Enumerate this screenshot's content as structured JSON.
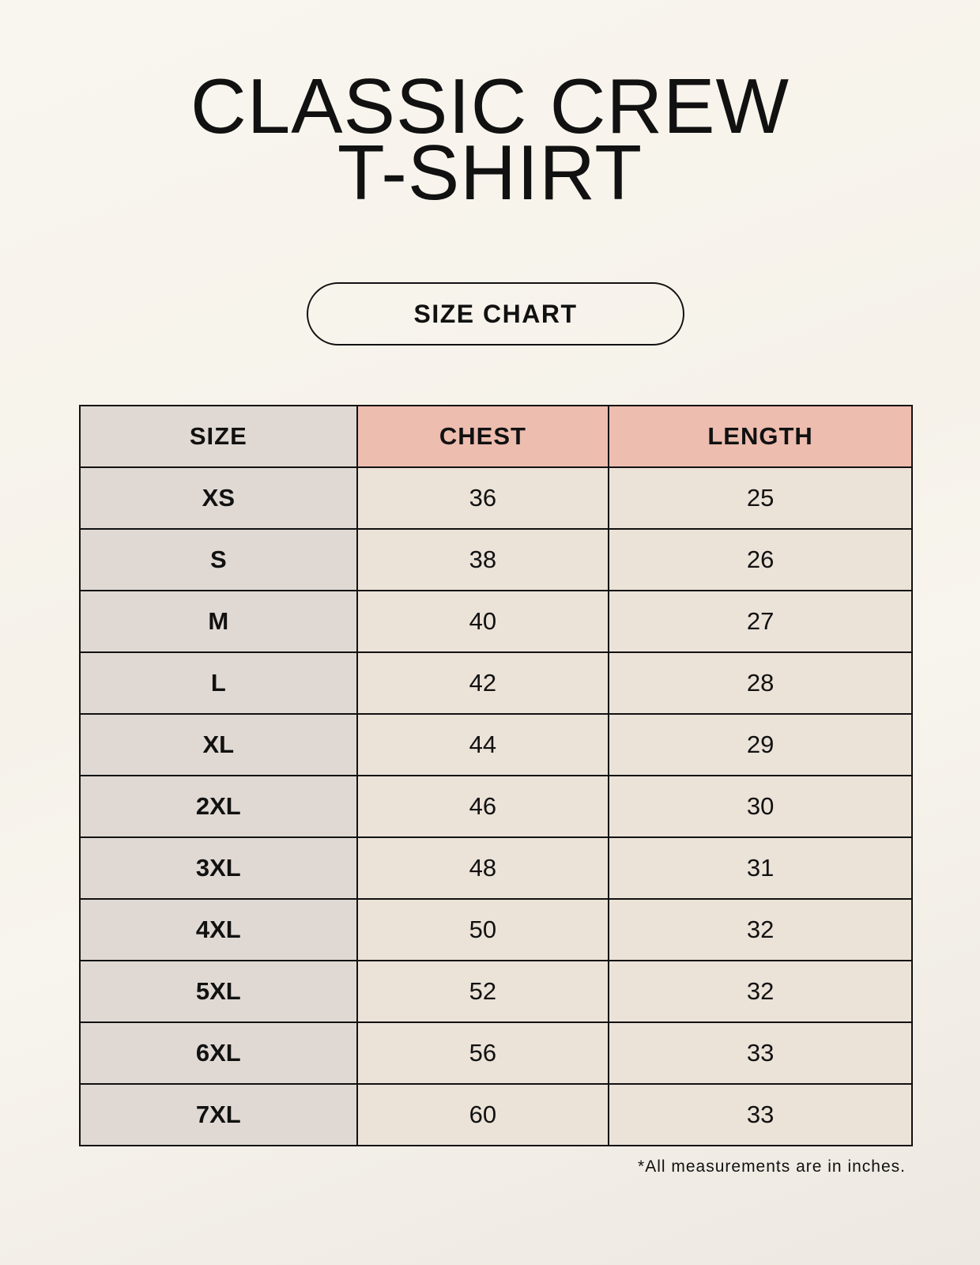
{
  "title": {
    "line1": "CLASSIC CREW",
    "line2": "T-SHIRT"
  },
  "badge": "SIZE CHART",
  "table": {
    "headers": [
      "SIZE",
      "CHEST",
      "LENGTH"
    ],
    "rows": [
      [
        "XS",
        "36",
        "25"
      ],
      [
        "S",
        "38",
        "26"
      ],
      [
        "M",
        "40",
        "27"
      ],
      [
        "L",
        "42",
        "28"
      ],
      [
        "XL",
        "44",
        "29"
      ],
      [
        "2XL",
        "46",
        "30"
      ],
      [
        "3XL",
        "48",
        "31"
      ],
      [
        "4XL",
        "50",
        "32"
      ],
      [
        "5XL",
        "52",
        "32"
      ],
      [
        "6XL",
        "56",
        "33"
      ],
      [
        "7XL",
        "60",
        "33"
      ]
    ]
  },
  "footnote": "*All measurements are in inches.",
  "colors": {
    "header_accent": "#edbdaf",
    "size_column": "#e0d9d3",
    "value_cells": "#ebe2d8"
  }
}
